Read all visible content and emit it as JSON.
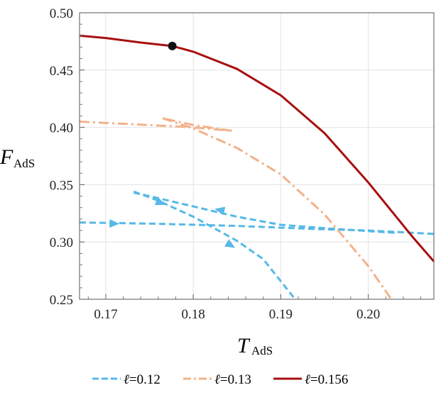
{
  "chart_data": {
    "type": "line",
    "xlabel": "T",
    "xlabel_sub": "AdS",
    "ylabel": "F",
    "ylabel_sub": "AdS",
    "xlim": [
      0.167,
      0.2075
    ],
    "ylim": [
      0.25,
      0.5
    ],
    "xticks": [
      0.17,
      0.18,
      0.19,
      0.2
    ],
    "xtick_labels": [
      "0.17",
      "0.18",
      "0.19",
      "0.20"
    ],
    "yticks": [
      0.25,
      0.3,
      0.35,
      0.4,
      0.45,
      0.5
    ],
    "ytick_labels": [
      "0.25",
      "0.30",
      "0.35",
      "0.40",
      "0.45",
      "0.50"
    ],
    "grid": true,
    "legend_position": "bottom",
    "series": [
      {
        "name": "ℓ=0.12",
        "legend_prefix": "ℓ",
        "legend_value": "=0.12",
        "color": "#56b9e6",
        "style": "dashed",
        "segments": [
          {
            "arrows": [
              [
                0.171,
                0.316
              ]
            ],
            "points": [
              [
                0.167,
                0.317
              ],
              [
                0.175,
                0.316
              ],
              [
                0.185,
                0.314
              ],
              [
                0.195,
                0.311
              ],
              [
                0.2,
                0.31
              ],
              [
                0.2075,
                0.307
              ]
            ]
          },
          {
            "arrows": [
              [
                0.183,
                0.328
              ]
            ],
            "points": [
              [
                0.203,
                0.308
              ],
              [
                0.195,
                0.312
              ],
              [
                0.19,
                0.315
              ],
              [
                0.185,
                0.322
              ],
              [
                0.18,
                0.331
              ],
              [
                0.175,
                0.34
              ],
              [
                0.1732,
                0.343
              ]
            ]
          },
          {
            "arrows": [
              [
                0.1763,
                0.334
              ],
              [
                0.1843,
                0.297
              ]
            ],
            "points": [
              [
                0.1732,
                0.344
              ],
              [
                0.176,
                0.336
              ],
              [
                0.18,
                0.322
              ],
              [
                0.185,
                0.301
              ],
              [
                0.188,
                0.285
              ],
              [
                0.1905,
                0.261
              ],
              [
                0.1928,
                0.239
              ]
            ]
          }
        ]
      },
      {
        "name": "ℓ=0.13",
        "legend_prefix": "ℓ",
        "legend_value": "=0.13",
        "color": "#f2b28a",
        "style": "dashdot",
        "segments": [
          {
            "arrows": [],
            "points": [
              [
                0.167,
                0.405
              ],
              [
                0.175,
                0.402
              ],
              [
                0.18,
                0.4
              ],
              [
                0.1844,
                0.397
              ]
            ]
          },
          {
            "arrows": [],
            "points": [
              [
                0.1844,
                0.397
              ],
              [
                0.18,
                0.402
              ],
              [
                0.1765,
                0.408
              ]
            ]
          },
          {
            "arrows": [],
            "points": [
              [
                0.1765,
                0.408
              ],
              [
                0.18,
                0.399
              ],
              [
                0.185,
                0.382
              ],
              [
                0.19,
                0.359
              ],
              [
                0.195,
                0.324
              ],
              [
                0.2,
                0.279
              ],
              [
                0.203,
                0.246
              ]
            ]
          }
        ]
      },
      {
        "name": "ℓ=0.156",
        "legend_prefix": "ℓ",
        "legend_value": "=0.156",
        "color": "#a80f0f",
        "style": "solid",
        "segments": [
          {
            "arrows": [],
            "points": [
              [
                0.167,
                0.48
              ],
              [
                0.17,
                0.478
              ],
              [
                0.174,
                0.474
              ],
              [
                0.1776,
                0.471
              ],
              [
                0.18,
                0.466
              ],
              [
                0.185,
                0.451
              ],
              [
                0.19,
                0.428
              ],
              [
                0.195,
                0.395
              ],
              [
                0.2,
                0.352
              ],
              [
                0.205,
                0.305
              ],
              [
                0.2075,
                0.283
              ]
            ]
          }
        ]
      }
    ],
    "markers": [
      {
        "x": 0.1776,
        "y": 0.471,
        "color": "#111111"
      }
    ]
  }
}
